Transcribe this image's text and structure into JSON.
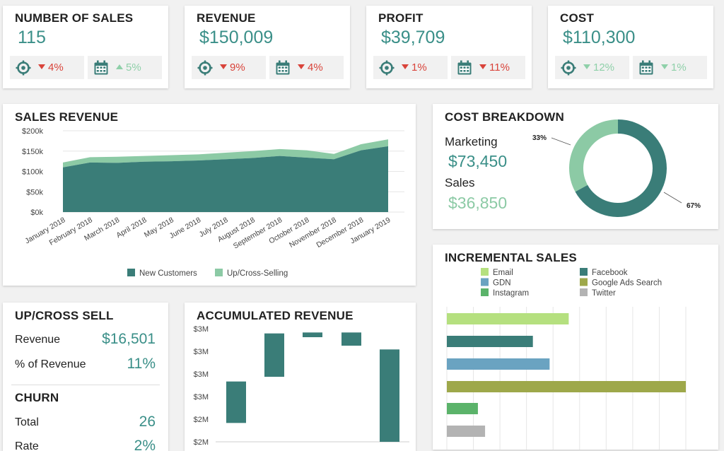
{
  "kpis": [
    {
      "title": "NUMBER OF SALES",
      "value": "115",
      "target_change": "4%",
      "target_dir": "down",
      "period_change": "5%",
      "period_dir": "up"
    },
    {
      "title": "REVENUE",
      "value": "$150,009",
      "target_change": "9%",
      "target_dir": "down",
      "period_change": "4%",
      "period_dir": "down"
    },
    {
      "title": "PROFIT",
      "value": "$39,709",
      "target_change": "1%",
      "target_dir": "down",
      "period_change": "11%",
      "period_dir": "down"
    },
    {
      "title": "COST",
      "value": "$110,300",
      "target_change": "12%",
      "target_dir": "down-good",
      "period_change": "1%",
      "period_dir": "down-good"
    }
  ],
  "colors": {
    "teal": "#3a7d78",
    "light_green": "#8ccaa5",
    "text_teal": "#3a8f88",
    "red": "#d9433a",
    "email": "#b5e07f",
    "facebook": "#3a7d78",
    "gdn": "#6aa3c1",
    "google_ads": "#9ea84a",
    "instagram": "#5bb36a",
    "twitter": "#b3b3b3"
  },
  "sales_revenue": {
    "title": "SALES REVENUE",
    "chart_data": {
      "type": "area",
      "x": [
        "January 2018",
        "February 2018",
        "March 2018",
        "April 2018",
        "May 2018",
        "June 2018",
        "July 2018",
        "August 2018",
        "September 2018",
        "October 2018",
        "November 2018",
        "December 2018",
        "January 2019"
      ],
      "series": [
        {
          "name": "New Customers",
          "values": [
            110,
            122,
            121,
            124,
            125,
            127,
            130,
            133,
            138,
            134,
            130,
            152,
            162
          ]
        },
        {
          "name": "Up/Cross-Selling",
          "values": [
            12,
            13,
            15,
            14,
            15,
            15,
            16,
            17,
            17,
            18,
            13,
            15,
            17
          ]
        }
      ],
      "y_ticks": [
        "$200k",
        "$150k",
        "$100k",
        "$50k",
        "$0k"
      ],
      "ylim": [
        0,
        200
      ],
      "stacked": true,
      "legend": "bottom"
    }
  },
  "cost_breakdown": {
    "title": "COST BREAKDOWN",
    "marketing_label": "Marketing",
    "marketing_value": "$73,450",
    "sales_label": "Sales",
    "sales_value": "$36,850",
    "chart_data": {
      "type": "pie",
      "labels": [
        "Marketing",
        "Sales"
      ],
      "values": [
        67,
        33
      ],
      "slice_labels": [
        "67%",
        "33%"
      ]
    }
  },
  "incremental_sales": {
    "title": "INCREMENTAL SALES",
    "chart_data": {
      "type": "bar",
      "orientation": "horizontal",
      "categories": [
        "Email",
        "Facebook",
        "GDN",
        "Google Ads Search",
        "Instagram",
        "Twitter"
      ],
      "values": [
        51,
        36,
        43,
        100,
        13,
        16
      ],
      "legend": [
        "Email",
        "Facebook",
        "GDN",
        "Google Ads Search",
        "Instagram",
        "Twitter"
      ]
    }
  },
  "upcross": {
    "title": "UP/CROSS SELL",
    "revenue_label": "Revenue",
    "revenue_value": "$16,501",
    "pct_label": "% of Revenue",
    "pct_value": "11%"
  },
  "churn": {
    "title": "CHURN",
    "total_label": "Total",
    "total_value": "26",
    "rate_label": "Rate",
    "rate_value": "2%"
  },
  "accumulated": {
    "title": "ACCUMULATED REVENUE",
    "chart_data": {
      "type": "bar",
      "subtype": "waterfall",
      "y_ticks": [
        "$3M",
        "$3M",
        "$3M",
        "$3M",
        "$2M",
        "$2M"
      ],
      "bars": [
        {
          "low": 2.0,
          "high": 2.44
        },
        {
          "low": 2.49,
          "high": 2.95
        },
        {
          "low": 2.91,
          "high": 2.96
        },
        {
          "low": 2.82,
          "high": 2.96
        },
        {
          "low": 1.8,
          "high": 2.78
        }
      ],
      "ylim": [
        1.8,
        3.0
      ]
    }
  }
}
